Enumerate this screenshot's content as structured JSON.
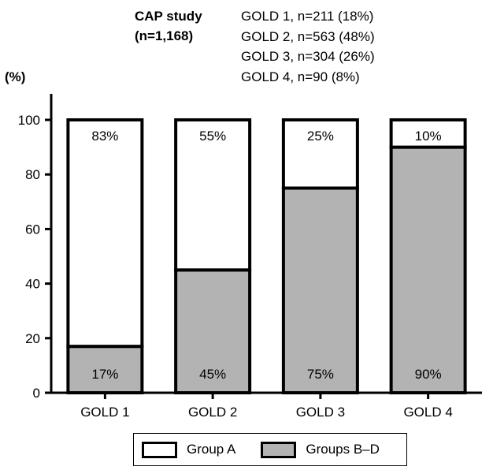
{
  "header": {
    "study_title_line1": "CAP study",
    "study_title_line2": "(n=1,168)",
    "group_counts": [
      "GOLD 1, n=211 (18%)",
      "GOLD 2, n=563 (48%)",
      "GOLD 3, n=304 (26%)",
      "GOLD 4, n=90 (8%)"
    ]
  },
  "legend": {
    "items": [
      {
        "label": "Group A",
        "color": "#ffffff"
      },
      {
        "label": "Groups B–D",
        "color": "#b3b3b3"
      }
    ]
  },
  "chart_data": {
    "type": "bar",
    "stacked": true,
    "categories": [
      "GOLD 1",
      "GOLD 2",
      "GOLD 3",
      "GOLD 4"
    ],
    "series": [
      {
        "name": "Groups B–D",
        "values": [
          17,
          45,
          75,
          90
        ],
        "labels": [
          "17%",
          "45%",
          "75%",
          "90%"
        ],
        "color": "#b3b3b3"
      },
      {
        "name": "Group A",
        "values": [
          83,
          55,
          25,
          10
        ],
        "labels": [
          "83%",
          "55%",
          "25%",
          "10%"
        ],
        "color": "#ffffff"
      }
    ],
    "ylabel": "(%)",
    "ylim": [
      0,
      100
    ],
    "yticks": [
      0,
      20,
      40,
      60,
      80,
      100
    ],
    "grid": false,
    "legend_position": "bottom"
  }
}
